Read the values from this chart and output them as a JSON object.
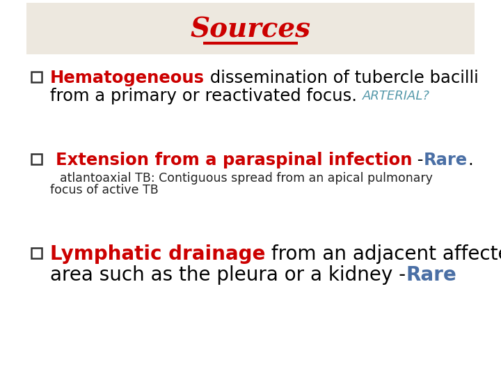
{
  "title": "Sources",
  "title_color": "#cc0000",
  "title_underline_color": "#cc0000",
  "bg_color": "#ffffff",
  "header_bg_color": "#ede8df",
  "checkbox_color": "#333333",
  "bullet1_bold": "Hematogeneous",
  "bullet1_bold_color": "#cc0000",
  "bullet1_rest1": " dissemination of tubercle bacilli",
  "bullet1_line2": "from a primary or reactivated focus. ",
  "bullet1_text_color": "#000000",
  "bullet1_suffix": "ARTERIAL?",
  "bullet1_suffix_color": "#5599aa",
  "bullet2_bold": "Extension from a paraspinal infection",
  "bullet2_bold_color": "#cc0000",
  "bullet2_dash": " -",
  "bullet2_rare": "Rare",
  "bullet2_rare_color": "#4a6fa5",
  "bullet2_dot": ".",
  "bullet2_text_color": "#000000",
  "bullet2_sub1": "atlantoaxial TB: Contiguous spread from an apical pulmonary",
  "bullet2_sub2": "focus of active TB",
  "bullet2_sub_color": "#222222",
  "bullet3_bold": "Lymphatic drainage",
  "bullet3_bold_color": "#cc0000",
  "bullet3_rest1": " from an adjacent affected",
  "bullet3_line2": "area such as the pleura or a kidney -",
  "bullet3_text_color": "#000000",
  "bullet3_rare": "Rare",
  "bullet3_rare_color": "#4a6fa5"
}
